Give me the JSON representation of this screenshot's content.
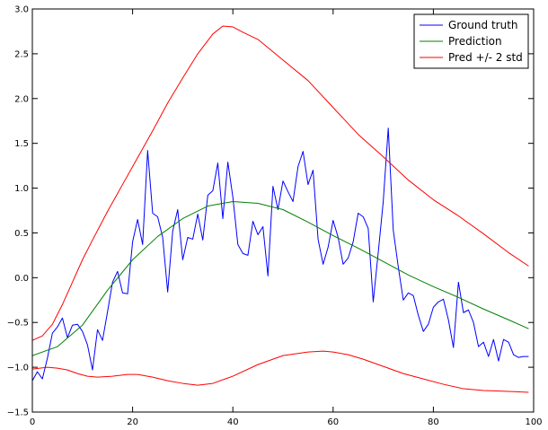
{
  "chart_data": {
    "type": "line",
    "title": "",
    "xlabel": "",
    "ylabel": "",
    "xlim": [
      0,
      100
    ],
    "ylim": [
      -1.5,
      3.0
    ],
    "xticks": [
      0,
      20,
      40,
      60,
      80,
      100
    ],
    "yticks": [
      -1.5,
      -1.0,
      -0.5,
      0.0,
      0.5,
      1.0,
      1.5,
      2.0,
      2.5,
      3.0
    ],
    "xtick_labels": [
      "0",
      "20",
      "40",
      "60",
      "80",
      "100"
    ],
    "ytick_labels": [
      "−1.5",
      "−1.0",
      "−0.5",
      "0.0",
      "0.5",
      "1.0",
      "1.5",
      "2.0",
      "2.5",
      "3.0"
    ],
    "grid": false,
    "legend_position": "top-right",
    "series": [
      {
        "name": "Ground truth",
        "color": "#0000ff",
        "x": [
          0,
          1,
          2,
          3,
          4,
          5,
          6,
          7,
          8,
          9,
          10,
          11,
          12,
          13,
          14,
          15,
          16,
          17,
          18,
          19,
          20,
          21,
          22,
          23,
          24,
          25,
          26,
          27,
          28,
          29,
          30,
          31,
          32,
          33,
          34,
          35,
          36,
          37,
          38,
          39,
          40,
          41,
          42,
          43,
          44,
          45,
          46,
          47,
          48,
          49,
          50,
          51,
          52,
          53,
          54,
          55,
          56,
          57,
          58,
          59,
          60,
          61,
          62,
          63,
          64,
          65,
          66,
          67,
          68,
          69,
          70,
          71,
          72,
          73,
          74,
          75,
          76,
          77,
          78,
          79,
          80,
          81,
          82,
          83,
          84,
          85,
          86,
          87,
          88,
          89,
          90,
          91,
          92,
          93,
          94,
          95,
          96,
          97,
          98,
          99
        ],
        "y": [
          -1.15,
          -1.05,
          -1.13,
          -0.9,
          -0.62,
          -0.55,
          -0.45,
          -0.67,
          -0.53,
          -0.52,
          -0.6,
          -0.75,
          -1.03,
          -0.58,
          -0.7,
          -0.38,
          -0.05,
          0.07,
          -0.17,
          -0.18,
          0.4,
          0.65,
          0.37,
          1.42,
          0.72,
          0.68,
          0.45,
          -0.16,
          0.52,
          0.76,
          0.2,
          0.45,
          0.43,
          0.71,
          0.42,
          0.92,
          0.97,
          1.28,
          0.66,
          1.29,
          0.9,
          0.37,
          0.27,
          0.25,
          0.63,
          0.48,
          0.57,
          0.02,
          1.02,
          0.76,
          1.08,
          0.96,
          0.85,
          1.24,
          1.41,
          1.04,
          1.2,
          0.43,
          0.15,
          0.34,
          0.64,
          0.45,
          0.15,
          0.22,
          0.4,
          0.72,
          0.68,
          0.55,
          -0.27,
          0.28,
          0.85,
          1.67,
          0.53,
          0.12,
          -0.25,
          -0.17,
          -0.2,
          -0.42,
          -0.6,
          -0.52,
          -0.33,
          -0.27,
          -0.24,
          -0.47,
          -0.78,
          -0.05,
          -0.39,
          -0.36,
          -0.5,
          -0.77,
          -0.72,
          -0.88,
          -0.69,
          -0.93,
          -0.69,
          -0.72,
          -0.86,
          -0.89,
          -0.88,
          -0.88
        ]
      },
      {
        "name": "Prediction",
        "color": "#008000",
        "x": [
          0,
          5,
          10,
          15,
          20,
          25,
          30,
          35,
          40,
          45,
          50,
          55,
          60,
          65,
          70,
          75,
          80,
          85,
          90,
          95,
          99
        ],
        "y": [
          -0.87,
          -0.77,
          -0.53,
          -0.14,
          0.2,
          0.46,
          0.66,
          0.8,
          0.85,
          0.83,
          0.76,
          0.62,
          0.47,
          0.33,
          0.18,
          0.03,
          -0.1,
          -0.22,
          -0.35,
          -0.47,
          -0.57
        ]
      },
      {
        "name": "Pred +/- 2 std",
        "color": "#ff0000",
        "x": [
          0,
          2,
          4,
          6,
          8,
          10,
          12,
          15,
          18,
          21,
          24,
          27,
          30,
          33,
          36,
          38,
          40,
          42,
          45,
          50,
          55,
          60,
          65,
          70,
          75,
          80,
          85,
          90,
          95,
          99
        ],
        "y": [
          -0.7,
          -0.65,
          -0.52,
          -0.3,
          -0.05,
          0.2,
          0.42,
          0.74,
          1.04,
          1.34,
          1.64,
          1.95,
          2.23,
          2.5,
          2.72,
          2.81,
          2.8,
          2.74,
          2.66,
          2.43,
          2.2,
          1.9,
          1.6,
          1.35,
          1.09,
          0.87,
          0.69,
          0.49,
          0.28,
          0.13
        ]
      },
      {
        "name": "",
        "color": "#ff0000",
        "x": [
          0,
          3,
          5,
          7,
          9,
          11,
          13,
          16,
          19,
          21,
          24,
          27,
          30,
          33,
          36,
          40,
          45,
          50,
          55,
          58,
          60,
          63,
          66,
          70,
          74,
          78,
          82,
          86,
          90,
          95,
          99
        ],
        "y": [
          -1.02,
          -1.0,
          -1.01,
          -1.03,
          -1.07,
          -1.1,
          -1.11,
          -1.1,
          -1.08,
          -1.08,
          -1.11,
          -1.15,
          -1.18,
          -1.2,
          -1.18,
          -1.1,
          -0.97,
          -0.87,
          -0.83,
          -0.82,
          -0.83,
          -0.86,
          -0.91,
          -0.99,
          -1.07,
          -1.13,
          -1.19,
          -1.24,
          -1.26,
          -1.27,
          -1.28
        ]
      }
    ]
  }
}
